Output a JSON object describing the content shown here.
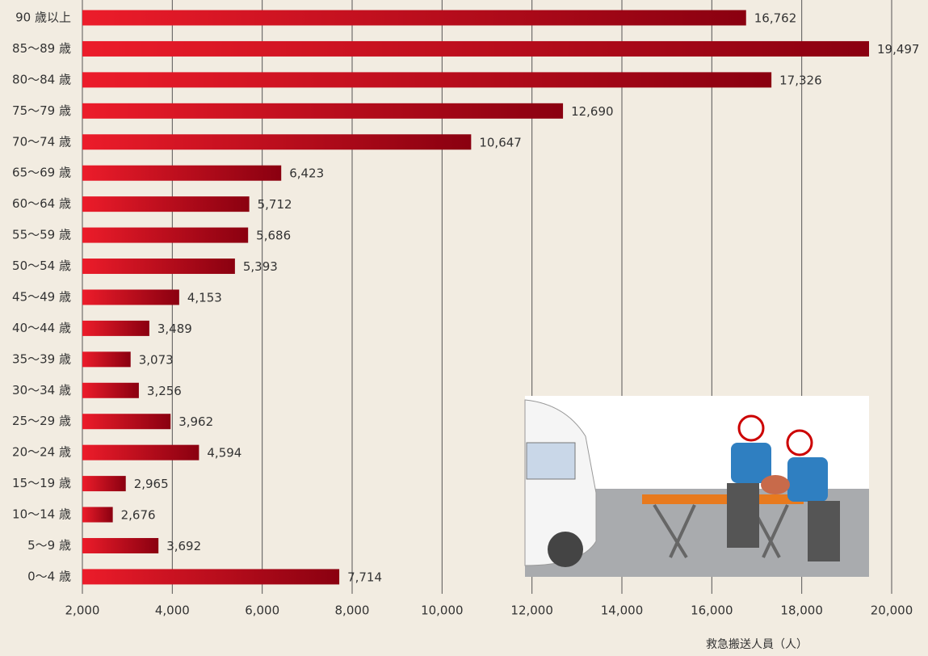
{
  "chart_data": {
    "type": "barh",
    "categories": [
      "90 歳以上",
      "85〜89 歳",
      "80〜84 歳",
      "75〜79 歳",
      "70〜74 歳",
      "65〜69 歳",
      "60〜64 歳",
      "55〜59 歳",
      "50〜54 歳",
      "45〜49 歳",
      "40〜44 歳",
      "35〜39 歳",
      "30〜34 歳",
      "25〜29 歳",
      "20〜24 歳",
      "15〜19 歳",
      "10〜14 歳",
      "5〜9 歳",
      "0〜4 歳"
    ],
    "values": [
      16762,
      19497,
      17326,
      12690,
      10647,
      6423,
      5712,
      5686,
      5393,
      4153,
      3489,
      3073,
      3256,
      3962,
      4594,
      2965,
      2676,
      3692,
      7714
    ],
    "value_labels": [
      "16,762",
      "19,497",
      "17,326",
      "12,690",
      "10,647",
      "6,423",
      "5,712",
      "5,686",
      "5,393",
      "4,153",
      "3,489",
      "3,073",
      "3,256",
      "3,962",
      "4,594",
      "2,965",
      "2,676",
      "3,692",
      "7,714"
    ],
    "color": [
      "#ec1c2a",
      "#8a0010"
    ],
    "xlim": [
      2000,
      20000
    ],
    "xticks": [
      {
        "value": 2000,
        "label": "2,000"
      },
      {
        "value": 4000,
        "label": "4,000"
      },
      {
        "value": 6000,
        "label": "6,000"
      },
      {
        "value": 8000,
        "label": "8,000"
      },
      {
        "value": 10000,
        "label": "10,000"
      },
      {
        "value": 12000,
        "label": "12,000"
      },
      {
        "value": 14000,
        "label": "14,000"
      },
      {
        "value": 16000,
        "label": "16,000"
      },
      {
        "value": 18000,
        "label": "18,000"
      },
      {
        "value": 20000,
        "label": "20,000"
      }
    ],
    "xlabel": "救急搬送人員（人）",
    "grid": true
  }
}
